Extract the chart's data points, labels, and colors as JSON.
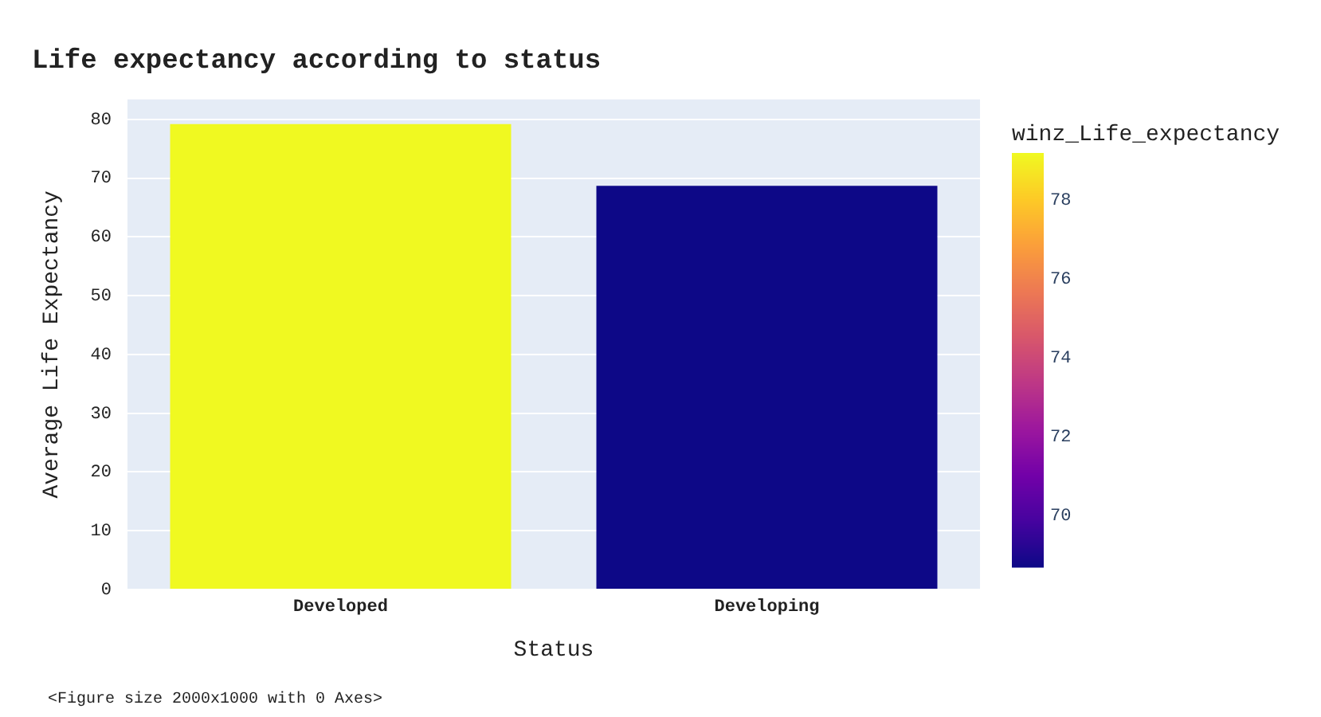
{
  "chart_data": {
    "type": "bar",
    "title": "Life expectancy according to status",
    "xlabel": "Status",
    "ylabel": "Average Life Expectancy",
    "clabel": "winz_Life_expectancy",
    "categories": [
      "Developed",
      "Developing"
    ],
    "values": [
      79.2,
      68.7
    ],
    "colors": [
      "#f0f921",
      "#0d0887"
    ],
    "ylim": [
      0,
      83.4
    ],
    "yticks": [
      0,
      10,
      20,
      30,
      40,
      50,
      60,
      70,
      80
    ],
    "clim": [
      68.7,
      79.2
    ],
    "cticks": [
      70,
      72,
      74,
      76,
      78
    ],
    "grid": "y",
    "legend": false,
    "annotations": [
      "<Figure size 2000x1000 with 0 Axes>"
    ]
  }
}
